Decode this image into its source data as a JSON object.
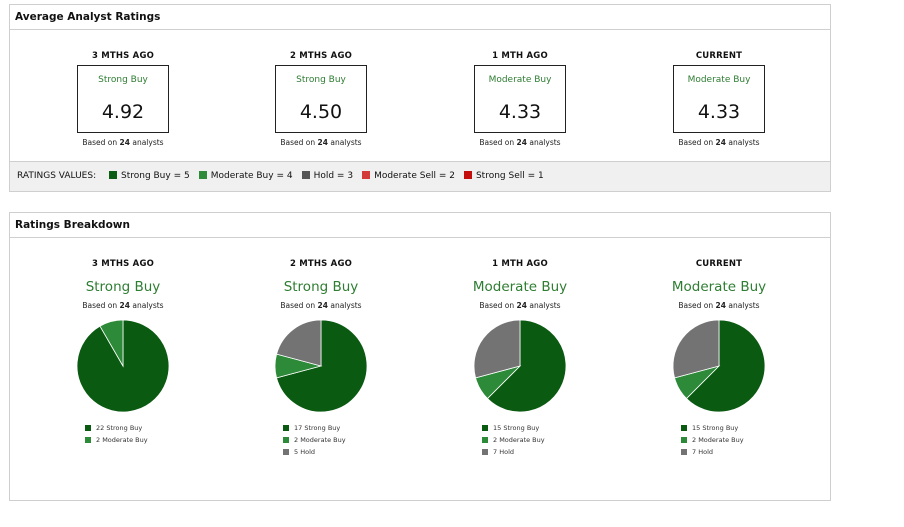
{
  "avg_panel": {
    "title": "Average Analyst Ratings",
    "ratings_values_label": "RATINGS VALUES:",
    "ratings_values": [
      {
        "label": "Strong Buy = 5",
        "color": "#0b5e14"
      },
      {
        "label": "Moderate Buy = 4",
        "color": "#2e8b3a"
      },
      {
        "label": "Hold = 3",
        "color": "#555555"
      },
      {
        "label": "Moderate Sell = 2",
        "color": "#d33b3b"
      },
      {
        "label": "Strong Sell = 1",
        "color": "#c40d0d"
      }
    ]
  },
  "breakdown_panel": {
    "title": "Ratings Breakdown"
  },
  "based_prefix": "Based on",
  "based_suffix": "analysts",
  "chart_data": {
    "type": "pie",
    "slice_colors": {
      "Strong Buy": "#0a5a11",
      "Moderate Buy": "#2d8a38",
      "Hold": "#737373"
    },
    "periods": [
      {
        "label": "3 MTHS AGO",
        "rating": "Strong Buy",
        "score": "4.92",
        "analysts": "24",
        "slices": [
          {
            "name": "Strong Buy",
            "count": 22,
            "legend": "22 Strong Buy"
          },
          {
            "name": "Moderate Buy",
            "count": 2,
            "legend": "2 Moderate Buy"
          }
        ]
      },
      {
        "label": "2 MTHS AGO",
        "rating": "Strong Buy",
        "score": "4.50",
        "analysts": "24",
        "slices": [
          {
            "name": "Strong Buy",
            "count": 17,
            "legend": "17 Strong Buy"
          },
          {
            "name": "Moderate Buy",
            "count": 2,
            "legend": "2 Moderate Buy"
          },
          {
            "name": "Hold",
            "count": 5,
            "legend": "5 Hold"
          }
        ]
      },
      {
        "label": "1 MTH AGO",
        "rating": "Moderate Buy",
        "score": "4.33",
        "analysts": "24",
        "slices": [
          {
            "name": "Strong Buy",
            "count": 15,
            "legend": "15 Strong Buy"
          },
          {
            "name": "Moderate Buy",
            "count": 2,
            "legend": "2 Moderate Buy"
          },
          {
            "name": "Hold",
            "count": 7,
            "legend": "7 Hold"
          }
        ]
      },
      {
        "label": "CURRENT",
        "rating": "Moderate Buy",
        "score": "4.33",
        "analysts": "24",
        "slices": [
          {
            "name": "Strong Buy",
            "count": 15,
            "legend": "15 Strong Buy"
          },
          {
            "name": "Moderate Buy",
            "count": 2,
            "legend": "2 Moderate Buy"
          },
          {
            "name": "Hold",
            "count": 7,
            "legend": "7 Hold"
          }
        ]
      }
    ]
  }
}
